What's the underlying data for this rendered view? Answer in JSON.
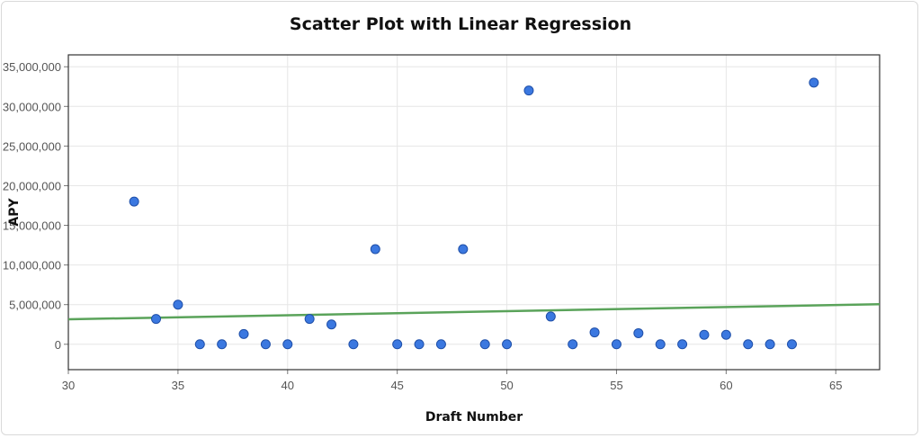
{
  "chart_data": {
    "type": "scatter",
    "title": "Scatter Plot with Linear Regression",
    "xlabel": "Draft Number",
    "ylabel": "APY",
    "xlim": [
      30,
      67
    ],
    "ylim": [
      -3200000,
      36500000
    ],
    "grid": true,
    "x_ticks": [
      30,
      35,
      40,
      45,
      50,
      55,
      60,
      65
    ],
    "y_ticks": [
      0,
      5000000,
      10000000,
      15000000,
      20000000,
      25000000,
      30000000,
      35000000
    ],
    "y_tick_labels": [
      "0",
      "5,000,000",
      "10,000,000",
      "15,000,000",
      "20,000,000",
      "25,000,000",
      "30,000,000",
      "35,000,000"
    ],
    "colors": {
      "points": "#3b78e0",
      "point_edge": "#1f4fa8",
      "regression": "#5aa35a"
    },
    "series": [
      {
        "x": [
          33,
          34,
          35,
          36,
          37,
          38,
          39,
          40,
          41,
          42,
          43,
          44,
          45,
          46,
          47,
          48,
          49,
          50,
          51,
          52,
          53,
          54,
          55,
          56,
          57,
          58,
          59,
          60,
          61,
          62,
          63,
          64
        ],
        "y": [
          18000000,
          3200000,
          5000000,
          0,
          0,
          1300000,
          0,
          0,
          3200000,
          2500000,
          0,
          12000000,
          0,
          0,
          0,
          12000000,
          0,
          0,
          32000000,
          3500000,
          0,
          1500000,
          0,
          1400000,
          0,
          0,
          1200000,
          1200000,
          0,
          0,
          0,
          33000000
        ]
      }
    ],
    "regression": {
      "x": [
        30,
        67
      ],
      "y": [
        3150000,
        5050000
      ]
    }
  }
}
